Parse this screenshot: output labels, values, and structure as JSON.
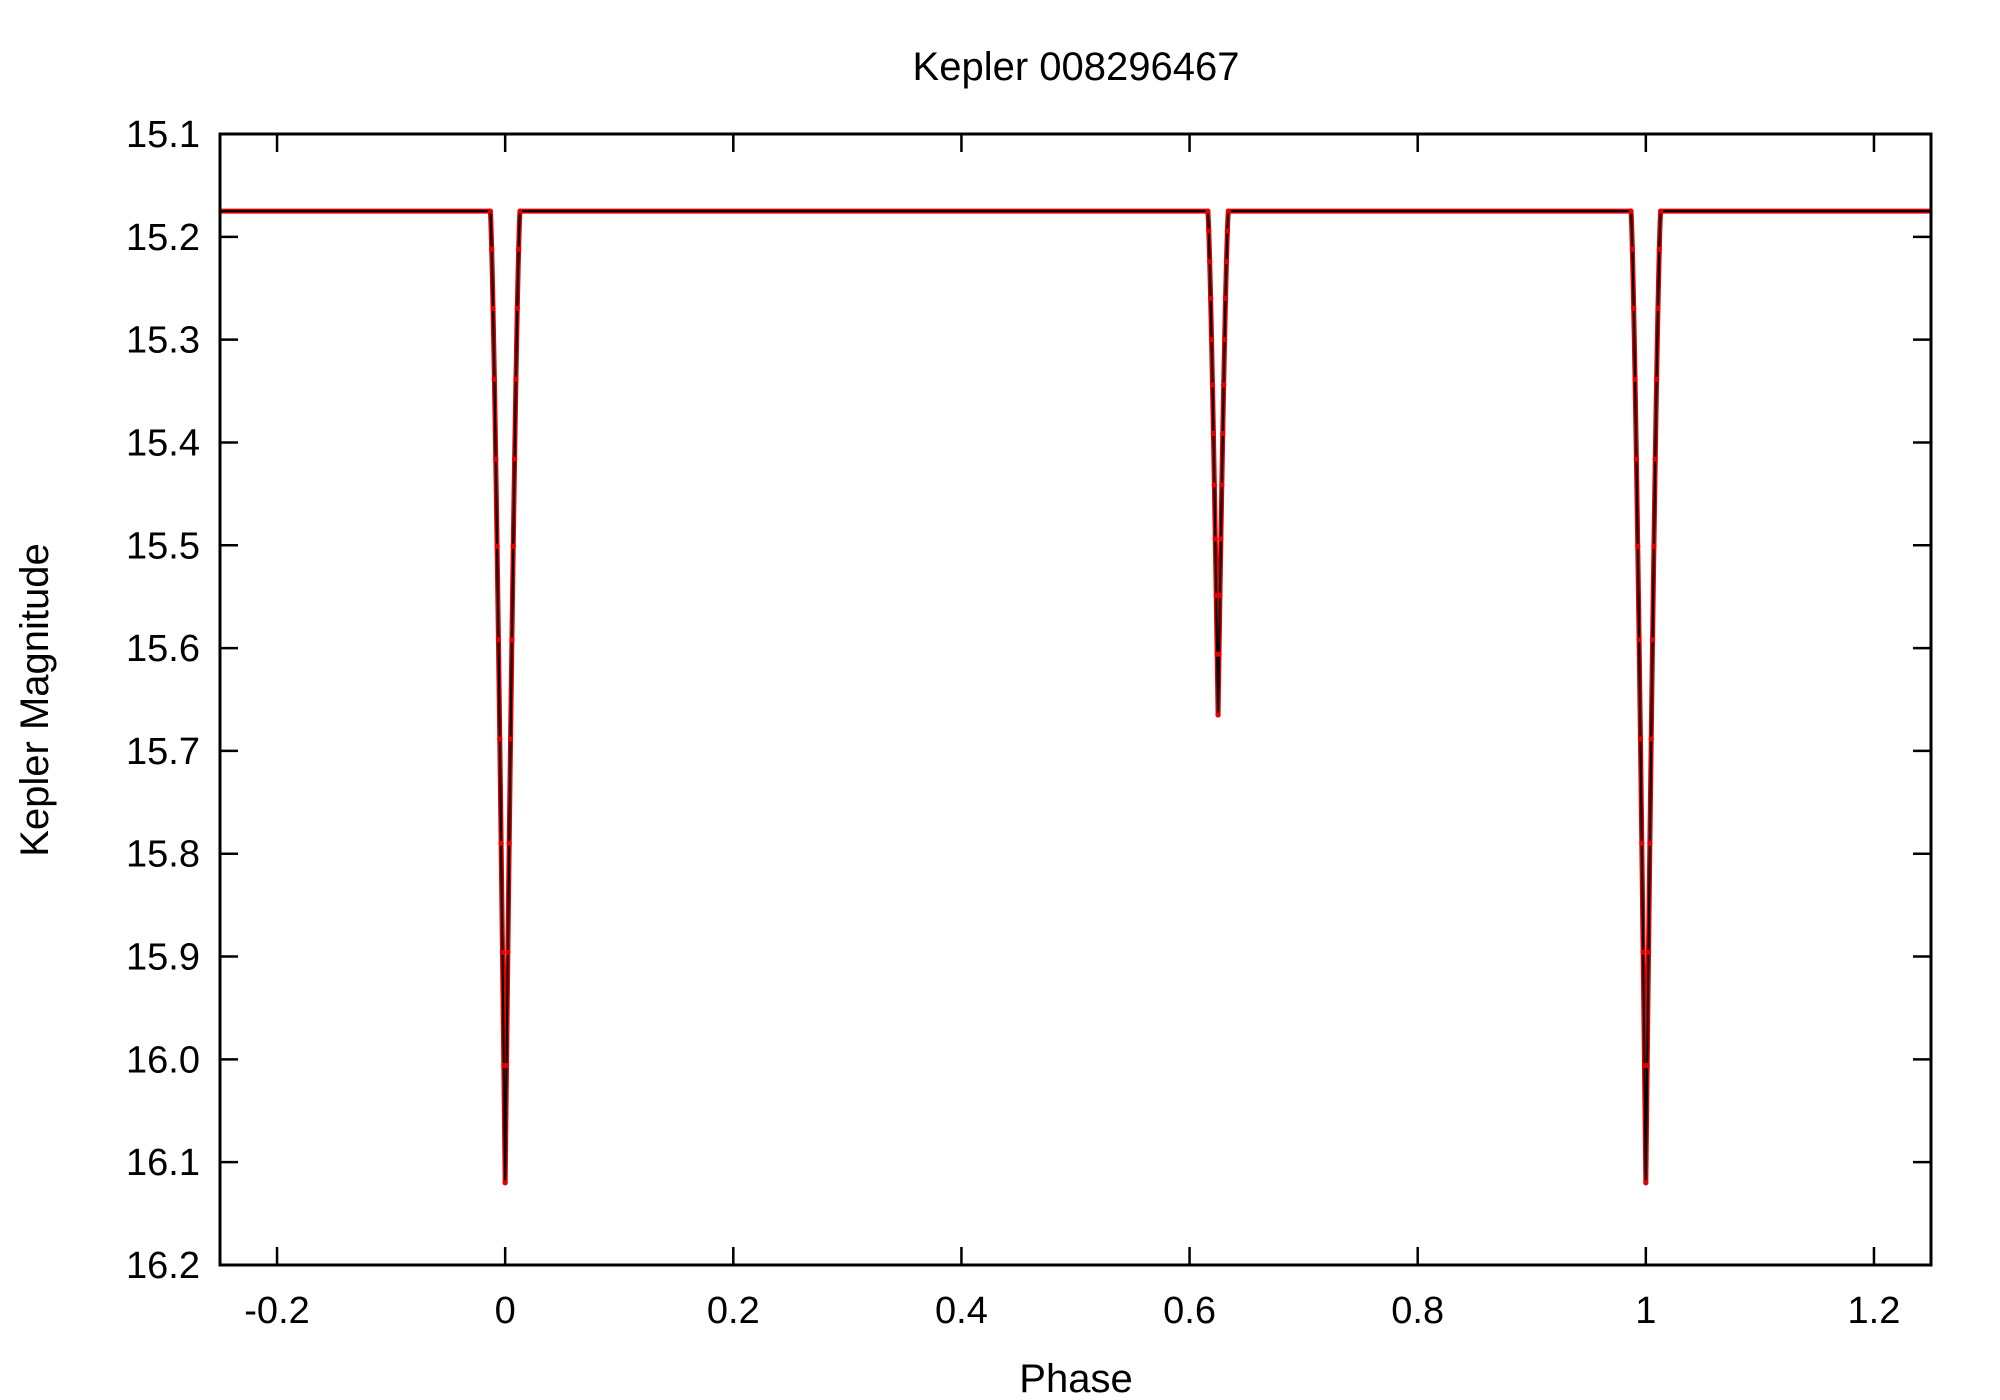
{
  "chart_data": {
    "type": "line",
    "title": "Kepler 008296467",
    "xlabel": "Phase",
    "ylabel": "Kepler Magnitude",
    "xlim": [
      -0.25,
      1.25
    ],
    "ylim": [
      15.1,
      16.2
    ],
    "y_inverted": true,
    "grid": false,
    "legend": "none",
    "x_ticks": [
      -0.2,
      0,
      0.2,
      0.4,
      0.6,
      0.8,
      1,
      1.2
    ],
    "x_tick_labels": [
      "-0.2",
      "0",
      "0.2",
      "0.4",
      "0.6",
      "0.8",
      "1",
      "1.2"
    ],
    "y_ticks": [
      15.1,
      15.2,
      15.3,
      15.4,
      15.5,
      15.6,
      15.7,
      15.8,
      15.9,
      16.0,
      16.1,
      16.2
    ],
    "y_tick_labels": [
      "15.1",
      "15.2",
      "15.3",
      "15.4",
      "15.5",
      "15.6",
      "15.7",
      "15.8",
      "15.9",
      "16.0",
      "16.1",
      "16.2"
    ],
    "baseline_magnitude": 15.175,
    "eclipses": [
      {
        "phase": 0.0,
        "depth_magnitude": 16.12,
        "half_width": 0.013
      },
      {
        "phase": 0.625,
        "depth_magnitude": 15.665,
        "half_width": 0.009
      },
      {
        "phase": 1.0,
        "depth_magnitude": 16.12,
        "half_width": 0.013
      }
    ],
    "colors": {
      "observed": "#e00000",
      "model": "#000000"
    }
  }
}
